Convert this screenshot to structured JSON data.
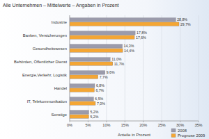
{
  "chart_data": {
    "type": "bar",
    "orientation": "horizontal",
    "title": "Alle Unternehmen – Mittelwerte – Angaben in Prozent",
    "x_label": "Anteile in Prozent",
    "categories": [
      "Industrie",
      "Banken, Versicherungen",
      "Gesundheitswesen",
      "Behörden, Öffentlicher Dienst",
      "Energie,Verkehr, Logistik",
      "Handel",
      "IT, Telekommunikation",
      "Sonstige"
    ],
    "series": [
      {
        "name": "2008",
        "color": "#9b9bab",
        "values": [
          28.8,
          17.8,
          14.3,
          11.0,
          9.6,
          6.8,
          6.5,
          5.2
        ],
        "value_labels": [
          "28,8%",
          "17,8%",
          "14,3%",
          "11,0%",
          "9,6%",
          "6,8%",
          "6,5%",
          "5,2%"
        ]
      },
      {
        "name": "Prognose 2009",
        "color": "#f4a634",
        "values": [
          29.7,
          17.6,
          14.4,
          11.7,
          7.7,
          6.7,
          7.0,
          5.2
        ],
        "value_labels": [
          "29,7%",
          "17,6%",
          "14,4%",
          "11,7%",
          "7,7%",
          "6,7%",
          "7,0%",
          "5,2%"
        ]
      }
    ],
    "xlim": [
      0,
      35
    ],
    "xticks": [
      {
        "value": 0,
        "label": "0%"
      },
      {
        "value": 5,
        "label": "5%"
      },
      {
        "value": 10,
        "label": "10%"
      },
      {
        "value": 15,
        "label": "15%"
      },
      {
        "value": 20,
        "label": "20%"
      },
      {
        "value": 25,
        "label": "25%"
      },
      {
        "value": 30,
        "label": "30%"
      },
      {
        "value": 35,
        "label": "35%"
      }
    ],
    "grid": true,
    "data_labels": true,
    "legend": "bottom-right"
  }
}
